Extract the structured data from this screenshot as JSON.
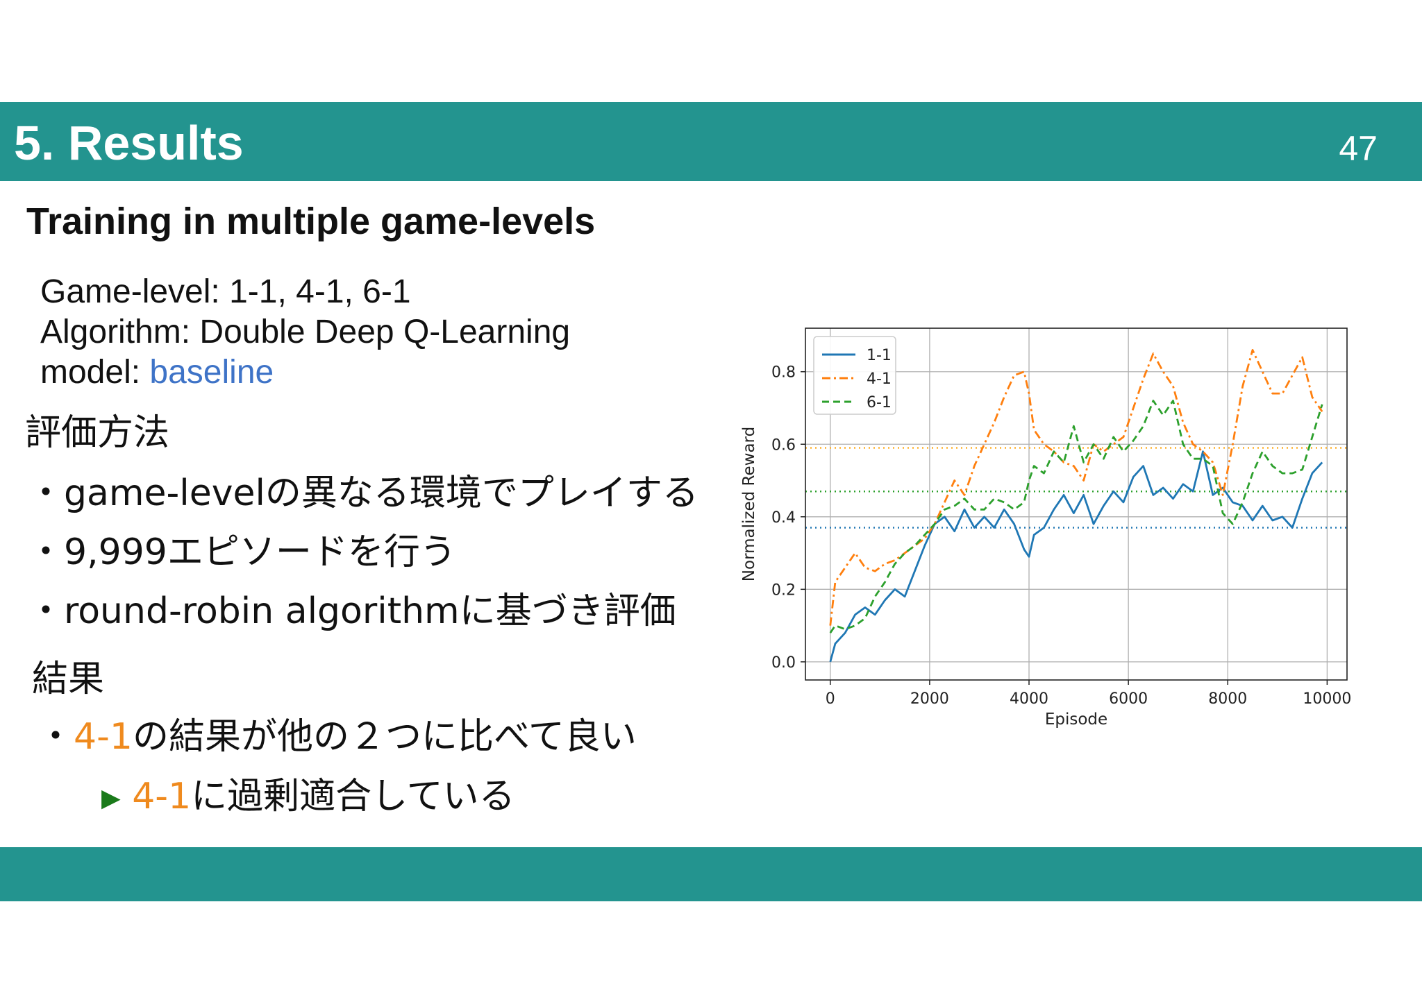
{
  "slide": {
    "title": "5. Results",
    "page_number": "47",
    "subtitle": "Training in multiple game-levels",
    "info": {
      "game_level": "Game-level: 1-1, 4-1, 6-1",
      "algorithm": "Algorithm:  Double Deep Q-Learning",
      "model_prefix": "model: ",
      "model_value": "baseline"
    },
    "evaluation": {
      "heading": "評価方法",
      "bullets": [
        "・game-levelの異なる環境でプレイする",
        "・9,999エピソードを行う",
        "・round-robin algorithmに基づき評価"
      ]
    },
    "results": {
      "heading": "結果",
      "bullet_prefix": "・",
      "bullet_level": "4-1",
      "bullet_rest": "の結果が他の２つに比べて良い",
      "sub_arrow": "▶",
      "sub_level": "4-1",
      "sub_rest": "に過剰適合している"
    },
    "colors": {
      "bar": "#23948f",
      "accent_blue": "#3e73c7",
      "accent_orange": "#ef8a1e"
    }
  },
  "chart_data": {
    "type": "line",
    "title": "",
    "xlabel": "Episode",
    "ylabel": "Normalized Reward",
    "xlim": [
      -500,
      10400
    ],
    "ylim": [
      -0.05,
      0.92
    ],
    "xticks": [
      0,
      2000,
      4000,
      6000,
      8000,
      10000
    ],
    "yticks": [
      0.0,
      0.2,
      0.4,
      0.6,
      0.8
    ],
    "xtick_labels": [
      "0",
      "2000",
      "4000",
      "6000",
      "8000",
      "10000"
    ],
    "ytick_labels": [
      "0.0",
      "0.2",
      "0.4",
      "0.6",
      "0.8"
    ],
    "grid": true,
    "legend": "top-left",
    "series": [
      {
        "name": "1-1",
        "color": "#1f77b4",
        "dash": "solid",
        "x": [
          0,
          100,
          300,
          500,
          700,
          900,
          1100,
          1300,
          1500,
          1700,
          1900,
          2100,
          2300,
          2500,
          2700,
          2900,
          3100,
          3300,
          3500,
          3700,
          3900,
          4000,
          4100,
          4300,
          4500,
          4700,
          4900,
          5100,
          5300,
          5500,
          5700,
          5900,
          6100,
          6300,
          6500,
          6700,
          6900,
          7100,
          7300,
          7500,
          7700,
          7900,
          8100,
          8300,
          8500,
          8700,
          8900,
          9100,
          9300,
          9500,
          9700,
          9900
        ],
        "y": [
          0.0,
          0.05,
          0.08,
          0.13,
          0.15,
          0.13,
          0.17,
          0.2,
          0.18,
          0.25,
          0.32,
          0.38,
          0.4,
          0.36,
          0.42,
          0.37,
          0.4,
          0.37,
          0.42,
          0.38,
          0.31,
          0.29,
          0.35,
          0.37,
          0.42,
          0.46,
          0.41,
          0.46,
          0.38,
          0.43,
          0.47,
          0.44,
          0.51,
          0.54,
          0.46,
          0.48,
          0.45,
          0.49,
          0.47,
          0.58,
          0.46,
          0.48,
          0.44,
          0.43,
          0.39,
          0.43,
          0.39,
          0.4,
          0.37,
          0.45,
          0.52,
          0.55
        ]
      },
      {
        "name": "4-1",
        "color": "#ff7f0e",
        "dash": "dashdot",
        "x": [
          0,
          100,
          300,
          500,
          700,
          900,
          1100,
          1300,
          1500,
          1700,
          1900,
          2100,
          2300,
          2500,
          2700,
          2900,
          3100,
          3300,
          3500,
          3700,
          3900,
          4000,
          4100,
          4300,
          4500,
          4700,
          4900,
          5100,
          5300,
          5500,
          5700,
          5900,
          6100,
          6300,
          6500,
          6700,
          6900,
          7100,
          7300,
          7500,
          7700,
          7900,
          8100,
          8300,
          8500,
          8700,
          8900,
          9100,
          9300,
          9500,
          9700,
          9900
        ],
        "y": [
          0.1,
          0.22,
          0.26,
          0.3,
          0.26,
          0.25,
          0.27,
          0.28,
          0.3,
          0.32,
          0.34,
          0.38,
          0.44,
          0.5,
          0.46,
          0.54,
          0.6,
          0.66,
          0.73,
          0.79,
          0.8,
          0.74,
          0.64,
          0.6,
          0.58,
          0.55,
          0.54,
          0.5,
          0.6,
          0.58,
          0.6,
          0.62,
          0.7,
          0.78,
          0.85,
          0.8,
          0.76,
          0.66,
          0.6,
          0.58,
          0.55,
          0.46,
          0.6,
          0.76,
          0.86,
          0.8,
          0.74,
          0.74,
          0.79,
          0.84,
          0.73,
          0.69
        ]
      },
      {
        "name": "6-1",
        "color": "#2ca02c",
        "dash": "dashed",
        "x": [
          0,
          100,
          300,
          500,
          700,
          900,
          1100,
          1300,
          1500,
          1700,
          1900,
          2100,
          2300,
          2500,
          2700,
          2900,
          3100,
          3300,
          3500,
          3700,
          3900,
          4000,
          4100,
          4300,
          4500,
          4700,
          4900,
          5100,
          5300,
          5500,
          5700,
          5900,
          6100,
          6300,
          6500,
          6700,
          6900,
          7100,
          7300,
          7500,
          7700,
          7900,
          8100,
          8300,
          8500,
          8700,
          8900,
          9100,
          9300,
          9500,
          9700,
          9900
        ],
        "y": [
          0.08,
          0.1,
          0.09,
          0.1,
          0.12,
          0.18,
          0.22,
          0.27,
          0.3,
          0.32,
          0.35,
          0.38,
          0.42,
          0.43,
          0.45,
          0.42,
          0.42,
          0.45,
          0.44,
          0.42,
          0.44,
          0.5,
          0.54,
          0.52,
          0.58,
          0.55,
          0.65,
          0.55,
          0.6,
          0.56,
          0.62,
          0.58,
          0.61,
          0.65,
          0.72,
          0.68,
          0.72,
          0.6,
          0.56,
          0.56,
          0.54,
          0.41,
          0.38,
          0.44,
          0.52,
          0.58,
          0.54,
          0.52,
          0.52,
          0.53,
          0.62,
          0.71
        ]
      }
    ],
    "reference_lines": [
      {
        "series": "4-1",
        "y": 0.59,
        "color": "#ffb22e",
        "style": "dotted"
      },
      {
        "series": "6-1",
        "y": 0.47,
        "color": "#2ca02c",
        "style": "dotted"
      },
      {
        "series": "1-1",
        "y": 0.37,
        "color": "#1f77b4",
        "style": "dotted"
      }
    ]
  }
}
